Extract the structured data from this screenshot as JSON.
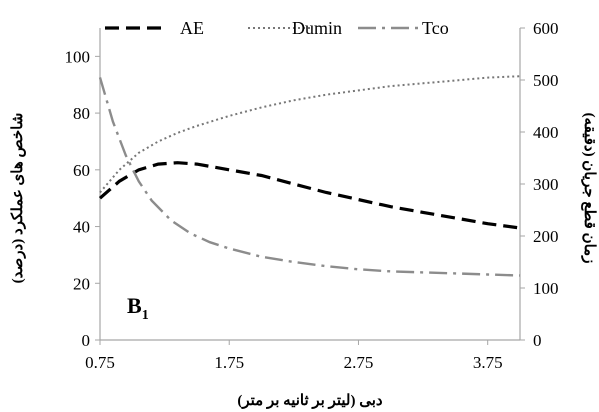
{
  "chart_data": {
    "type": "line",
    "panel_label": "B",
    "panel_label_sub": "1",
    "xlabel": "دبی (لیتر بر ثانیه بر متر)",
    "ylabel_left": "شاخص های عملکرد (درصد)",
    "ylabel_right": "زمان قطع جریان (دقیقه)",
    "x_ticks": [
      "0.75",
      "1.75",
      "2.75",
      "3.75"
    ],
    "x_tick_values": [
      0.75,
      1.75,
      2.75,
      3.75
    ],
    "xlim": [
      0.75,
      4.0
    ],
    "y_left_ticks": [
      "0",
      "20",
      "40",
      "60",
      "80",
      "100"
    ],
    "y_left_tick_values": [
      0,
      20,
      40,
      60,
      80,
      100
    ],
    "ylim_left": [
      0,
      110
    ],
    "y_right_ticks": [
      "0",
      "100",
      "200",
      "300",
      "400",
      "500",
      "600"
    ],
    "y_right_tick_values": [
      0,
      100,
      200,
      300,
      400,
      500,
      600
    ],
    "ylim_right": [
      0,
      600
    ],
    "grid": false,
    "legend_position": "top",
    "series": [
      {
        "name": "AE",
        "axis": "left",
        "style": "dashed",
        "color": "#000000",
        "x": [
          0.75,
          0.9,
          1.05,
          1.2,
          1.35,
          1.5,
          1.75,
          2.0,
          2.25,
          2.5,
          2.75,
          3.0,
          3.25,
          3.5,
          3.75,
          4.0
        ],
        "y": [
          50,
          56,
          60,
          62,
          62.5,
          62,
          60,
          58,
          55,
          52,
          49.5,
          47,
          45,
          43,
          41,
          39.5
        ]
      },
      {
        "name": "Dumin",
        "axis": "left",
        "style": "dotted",
        "color": "#777777",
        "x": [
          0.75,
          0.9,
          1.05,
          1.2,
          1.35,
          1.5,
          1.75,
          2.0,
          2.25,
          2.5,
          2.75,
          3.0,
          3.25,
          3.5,
          3.75,
          4.0
        ],
        "y": [
          52,
          60,
          66,
          70,
          73,
          75.5,
          79,
          82,
          84.5,
          86.5,
          88,
          89.5,
          90.5,
          91.5,
          92.5,
          93
        ]
      },
      {
        "name": "Tco",
        "axis": "right",
        "style": "dash-dot",
        "color": "#8c8c8c",
        "x": [
          0.75,
          0.85,
          0.95,
          1.05,
          1.15,
          1.3,
          1.45,
          1.6,
          1.75,
          2.0,
          2.25,
          2.5,
          2.75,
          3.0,
          3.25,
          3.5,
          3.75,
          4.0
        ],
        "y": [
          505,
          420,
          355,
          305,
          268,
          230,
          205,
          188,
          176,
          160,
          150,
          142,
          136,
          132,
          130,
          128,
          126,
          124
        ]
      }
    ]
  }
}
